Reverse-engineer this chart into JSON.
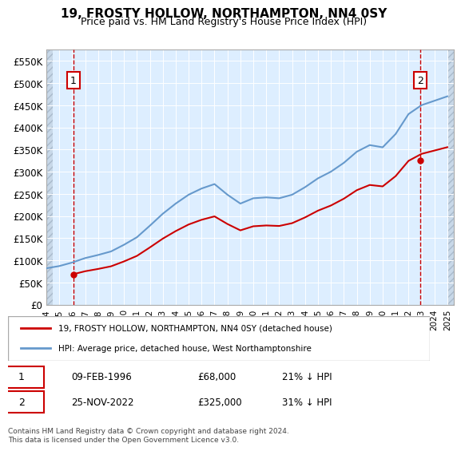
{
  "title": "19, FROSTY HOLLOW, NORTHAMPTON, NN4 0SY",
  "subtitle": "Price paid vs. HM Land Registry's House Price Index (HPI)",
  "ylabel_ticks": [
    "£0",
    "£50K",
    "£100K",
    "£150K",
    "£200K",
    "£250K",
    "£300K",
    "£350K",
    "£400K",
    "£450K",
    "£500K",
    "£550K"
  ],
  "ytick_vals": [
    0,
    50000,
    100000,
    150000,
    200000,
    250000,
    300000,
    350000,
    400000,
    450000,
    500000,
    550000
  ],
  "ylim": [
    0,
    575000
  ],
  "xlim_start": 1994.0,
  "xlim_end": 2025.5,
  "xticks": [
    1994,
    1995,
    1996,
    1997,
    1998,
    1999,
    2000,
    2001,
    2002,
    2003,
    2004,
    2005,
    2006,
    2007,
    2008,
    2009,
    2010,
    2011,
    2012,
    2013,
    2014,
    2015,
    2016,
    2017,
    2018,
    2019,
    2020,
    2021,
    2022,
    2023,
    2024,
    2025
  ],
  "legend_line1": "19, FROSTY HOLLOW, NORTHAMPTON, NN4 0SY (detached house)",
  "legend_line2": "HPI: Average price, detached house, West Northamptonshire",
  "transaction1_label": "1",
  "transaction1_date": "09-FEB-1996",
  "transaction1_price": "£68,000",
  "transaction1_hpi": "21% ↓ HPI",
  "transaction1_year": 1996.1,
  "transaction1_value": 68000,
  "transaction2_label": "2",
  "transaction2_date": "25-NOV-2022",
  "transaction2_price": "£325,000",
  "transaction2_hpi": "31% ↓ HPI",
  "transaction2_year": 2022.9,
  "transaction2_value": 325000,
  "copyright_text": "Contains HM Land Registry data © Crown copyright and database right 2024.\nThis data is licensed under the Open Government Licence v3.0.",
  "line_color_red": "#cc0000",
  "line_color_blue": "#6699cc",
  "bg_plot": "#ddeeff",
  "bg_hatch": "#c8d8e8",
  "hatch_pattern": "////",
  "hpi_years": [
    1994,
    1995,
    1996,
    1997,
    1998,
    1999,
    2000,
    2001,
    2002,
    2003,
    2004,
    2005,
    2006,
    2007,
    2008,
    2009,
    2010,
    2011,
    2012,
    2013,
    2014,
    2015,
    2016,
    2017,
    2018,
    2019,
    2020,
    2021,
    2022,
    2023,
    2024,
    2025
  ],
  "hpi_values": [
    82000,
    87000,
    95000,
    105000,
    112000,
    120000,
    135000,
    152000,
    178000,
    205000,
    228000,
    248000,
    262000,
    272000,
    248000,
    228000,
    240000,
    242000,
    240000,
    248000,
    265000,
    285000,
    300000,
    320000,
    345000,
    360000,
    355000,
    385000,
    430000,
    450000,
    460000,
    470000
  ],
  "price_paid_years": [
    1996.1,
    2022.9
  ],
  "price_paid_values": [
    68000,
    325000
  ]
}
